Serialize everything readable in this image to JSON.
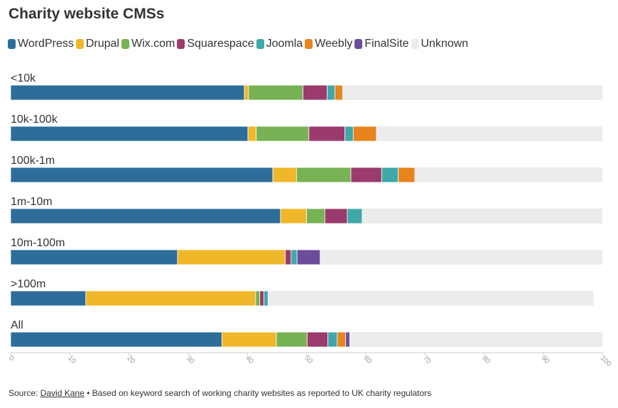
{
  "title": "Charity website CMSs",
  "footer": {
    "source_prefix": "Source: ",
    "source_link": "David Kane",
    "note": " • Based on keyword search of working charity websites as reported to UK charity regulators"
  },
  "chart_data": {
    "type": "bar",
    "orientation": "horizontal",
    "stacked": true,
    "title": "Charity website CMSs",
    "xlim": [
      0,
      100
    ],
    "x_ticks": [
      0,
      10,
      20,
      30,
      40,
      50,
      60,
      70,
      80,
      90,
      100
    ],
    "legend_position": "top-left",
    "grid": false,
    "categories": [
      "<10k",
      "10k-100k",
      "100k-1m",
      "1m-10m",
      "10m-100m",
      ">100m",
      "All"
    ],
    "series": [
      {
        "name": "WordPress",
        "color": "#2e6d99",
        "values": [
          39.5,
          40.1,
          44.3,
          45.6,
          28.2,
          12.7,
          35.7
        ]
      },
      {
        "name": "Drupal",
        "color": "#f0b72a",
        "values": [
          0.7,
          1.4,
          4.0,
          4.4,
          18.2,
          28.7,
          9.2
        ]
      },
      {
        "name": "Wix.com",
        "color": "#77b255",
        "values": [
          9.2,
          8.9,
          9.2,
          3.1,
          0.0,
          0.7,
          5.2
        ]
      },
      {
        "name": "Squarespace",
        "color": "#9b3a6d",
        "values": [
          4.1,
          6.1,
          5.2,
          3.8,
          1.0,
          0.7,
          3.5
        ]
      },
      {
        "name": "Joomla",
        "color": "#3fa8a8",
        "values": [
          1.3,
          1.4,
          2.8,
          2.5,
          1.0,
          0.7,
          1.6
        ]
      },
      {
        "name": "Weebly",
        "color": "#e8841e",
        "values": [
          1.3,
          3.9,
          2.8,
          0.0,
          0.0,
          0.0,
          1.4
        ]
      },
      {
        "name": "FinalSite",
        "color": "#6a4e9c",
        "values": [
          0.0,
          0.0,
          0.0,
          0.0,
          3.9,
          0.0,
          0.7
        ]
      },
      {
        "name": "Unknown",
        "color": "#ececec",
        "values": [
          43.9,
          38.2,
          31.7,
          40.6,
          47.7,
          55.0,
          42.7
        ]
      }
    ]
  }
}
